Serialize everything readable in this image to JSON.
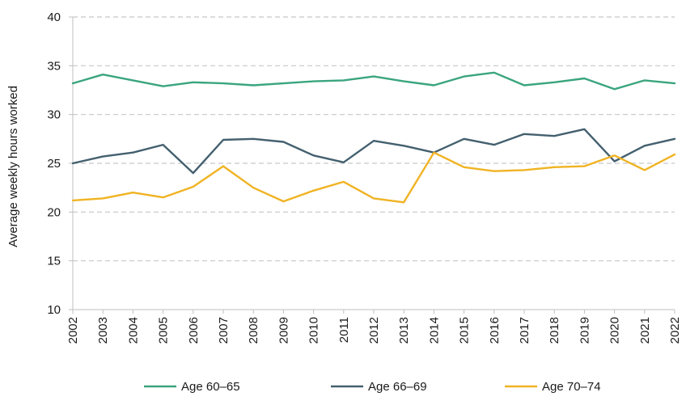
{
  "chart_data": {
    "type": "line",
    "title": "",
    "xlabel": "",
    "ylabel": "Average weekly hours worked",
    "ylim": [
      10,
      40
    ],
    "yticks": [
      10,
      15,
      20,
      25,
      30,
      35,
      40
    ],
    "grid": "horizontal dashed",
    "legend_position": "bottom",
    "x": [
      "2002",
      "2003",
      "2004",
      "2005",
      "2006",
      "2007",
      "2008",
      "2009",
      "2010",
      "2011",
      "2012",
      "2013",
      "2014",
      "2015",
      "2016",
      "2017",
      "2018",
      "2019",
      "2020",
      "2021",
      "2022"
    ],
    "series": [
      {
        "name": "Age 60–65",
        "color": "#3aa57e",
        "values": [
          33.2,
          34.1,
          33.5,
          32.9,
          33.3,
          33.2,
          33.0,
          33.2,
          33.4,
          33.5,
          33.9,
          33.4,
          33.0,
          33.9,
          34.3,
          33.0,
          33.3,
          33.7,
          32.6,
          33.5,
          33.2
        ]
      },
      {
        "name": "Age 66–69",
        "color": "#44606f",
        "values": [
          25.0,
          25.7,
          26.1,
          26.9,
          24.0,
          27.4,
          27.5,
          27.2,
          25.8,
          25.1,
          27.3,
          26.8,
          26.1,
          27.5,
          26.9,
          28.0,
          27.8,
          28.5,
          25.2,
          26.8,
          27.5
        ]
      },
      {
        "name": "Age 70–74",
        "color": "#f0b323",
        "values": [
          21.2,
          21.4,
          22.0,
          21.5,
          22.6,
          24.7,
          22.5,
          21.1,
          22.2,
          23.1,
          21.4,
          21.0,
          26.1,
          24.6,
          24.2,
          24.3,
          24.6,
          24.7,
          25.8,
          24.3,
          25.9
        ]
      }
    ]
  }
}
